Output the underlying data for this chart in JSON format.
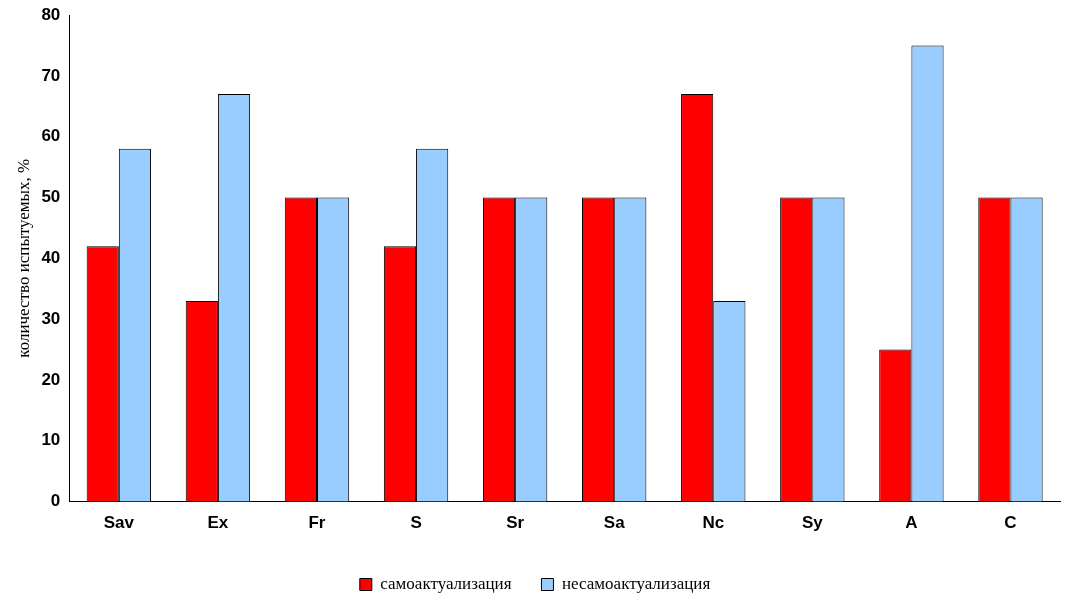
{
  "chart_data": {
    "type": "bar",
    "ylabel": "количество испытуемых, %",
    "categories": [
      "Sav",
      "Ex",
      "Fr",
      "S",
      "Sr",
      "Sa",
      "Nc",
      "Sy",
      "A",
      "C"
    ],
    "series": [
      {
        "name": "самоактуализация",
        "color": "#ff0000",
        "values": [
          42,
          33,
          50,
          42,
          50,
          50,
          67,
          50,
          25,
          50
        ]
      },
      {
        "name": "несамоактуализация",
        "color": "#99ccff",
        "values": [
          58,
          67,
          50,
          58,
          50,
          50,
          33,
          50,
          75,
          50
        ]
      }
    ],
    "ylim": [
      0,
      80
    ],
    "yticks": [
      0,
      10,
      20,
      30,
      40,
      50,
      60,
      70,
      80
    ],
    "grid": false,
    "legend": "bottom"
  }
}
